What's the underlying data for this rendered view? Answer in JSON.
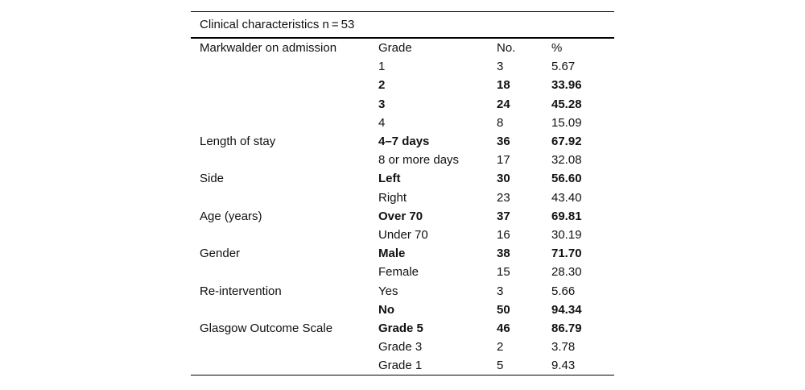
{
  "page": {
    "background": "#ffffff",
    "text_color": "#111111",
    "rule_color": "#000000"
  },
  "table": {
    "title": "Clinical characteristics n = 53",
    "rows": [
      {
        "category": "Markwalder on admission",
        "label": "Grade",
        "no": "No.",
        "pct": "%",
        "bold": false
      },
      {
        "category": "",
        "label": "1",
        "no": "3",
        "pct": "5.67",
        "bold": false
      },
      {
        "category": "",
        "label": "2",
        "no": "18",
        "pct": "33.96",
        "bold": true
      },
      {
        "category": "",
        "label": "3",
        "no": "24",
        "pct": "45.28",
        "bold": true
      },
      {
        "category": "",
        "label": "4",
        "no": "8",
        "pct": "15.09",
        "bold": false
      },
      {
        "category": "Length of stay",
        "label": "4–7 days",
        "no": "36",
        "pct": "67.92",
        "bold": true
      },
      {
        "category": "",
        "label": "8 or more days",
        "no": "17",
        "pct": "32.08",
        "bold": false
      },
      {
        "category": "Side",
        "label": "Left",
        "no": "30",
        "pct": "56.60",
        "bold": true
      },
      {
        "category": "",
        "label": "Right",
        "no": "23",
        "pct": "43.40",
        "bold": false
      },
      {
        "category": "Age (years)",
        "label": "Over 70",
        "no": "37",
        "pct": "69.81",
        "bold": true
      },
      {
        "category": "",
        "label": "Under 70",
        "no": "16",
        "pct": "30.19",
        "bold": false
      },
      {
        "category": "Gender",
        "label": "Male",
        "no": "38",
        "pct": "71.70",
        "bold": true
      },
      {
        "category": "",
        "label": "Female",
        "no": "15",
        "pct": "28.30",
        "bold": false
      },
      {
        "category": "Re-intervention",
        "label": "Yes",
        "no": "3",
        "pct": "5.66",
        "bold": false
      },
      {
        "category": "",
        "label": "No",
        "no": "50",
        "pct": "94.34",
        "bold": true
      },
      {
        "category": "Glasgow Outcome Scale",
        "label": "Grade 5",
        "no": "46",
        "pct": "86.79",
        "bold": true
      },
      {
        "category": "",
        "label": "Grade 3",
        "no": "2",
        "pct": "3.78",
        "bold": false
      },
      {
        "category": "",
        "label": "Grade 1",
        "no": "5",
        "pct": "9.43",
        "bold": false
      }
    ]
  }
}
